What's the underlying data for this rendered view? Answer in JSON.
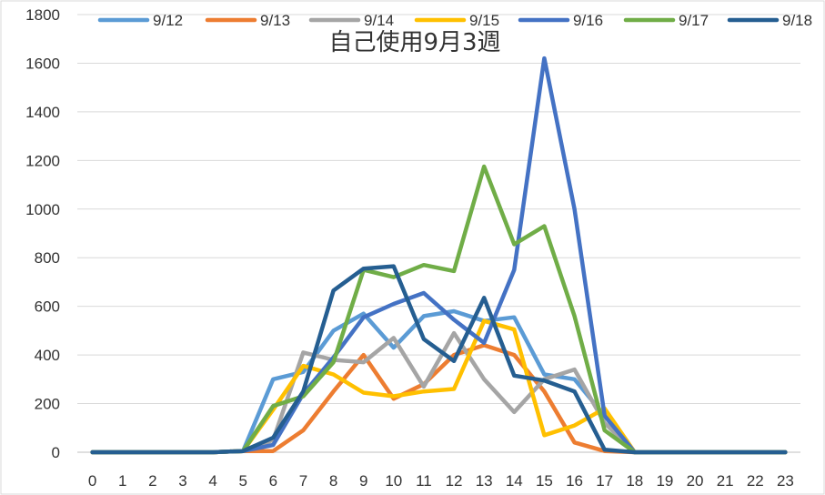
{
  "chart_data": {
    "type": "line",
    "title": "自己使用9月3週",
    "x": [
      "0",
      "1",
      "2",
      "3",
      "4",
      "5",
      "6",
      "7",
      "8",
      "9",
      "10",
      "11",
      "12",
      "13",
      "14",
      "15",
      "16",
      "17",
      "18",
      "19",
      "20",
      "21",
      "22",
      "23"
    ],
    "ylim": [
      0,
      1800
    ],
    "yticks": [
      "0",
      "200",
      "400",
      "600",
      "800",
      "1000",
      "1200",
      "1400",
      "1600",
      "1800"
    ],
    "grid": true,
    "legend": "top",
    "series": [
      {
        "name": "9/12",
        "color": "#5b9bd5",
        "values": [
          0,
          0,
          0,
          0,
          0,
          5,
          300,
          330,
          500,
          570,
          430,
          560,
          580,
          540,
          555,
          320,
          300,
          150,
          0,
          0,
          0,
          0,
          0,
          0
        ]
      },
      {
        "name": "9/13",
        "color": "#ed7d31",
        "values": [
          0,
          0,
          0,
          0,
          0,
          5,
          5,
          90,
          250,
          400,
          220,
          280,
          400,
          440,
          400,
          250,
          40,
          5,
          0,
          0,
          0,
          0,
          0,
          0
        ]
      },
      {
        "name": "9/14",
        "color": "#a5a5a5",
        "values": [
          0,
          0,
          0,
          0,
          0,
          5,
          50,
          410,
          380,
          370,
          470,
          270,
          490,
          300,
          165,
          300,
          340,
          120,
          0,
          0,
          0,
          0,
          0,
          0
        ]
      },
      {
        "name": "9/15",
        "color": "#ffc000",
        "values": [
          0,
          0,
          0,
          0,
          0,
          5,
          175,
          355,
          320,
          245,
          230,
          250,
          260,
          540,
          505,
          70,
          110,
          180,
          0,
          0,
          0,
          0,
          0,
          0
        ]
      },
      {
        "name": "9/16",
        "color": "#4472c4",
        "values": [
          0,
          0,
          0,
          0,
          0,
          5,
          30,
          240,
          390,
          555,
          610,
          655,
          545,
          450,
          750,
          1620,
          1000,
          150,
          0,
          0,
          0,
          0,
          0,
          0
        ]
      },
      {
        "name": "9/17",
        "color": "#70ad47",
        "values": [
          0,
          0,
          0,
          0,
          0,
          5,
          190,
          230,
          370,
          750,
          720,
          770,
          745,
          1175,
          855,
          930,
          560,
          90,
          0,
          0,
          0,
          0,
          0,
          0
        ]
      },
      {
        "name": "9/18",
        "color": "#255e91",
        "values": [
          0,
          0,
          0,
          0,
          0,
          5,
          60,
          250,
          665,
          755,
          765,
          465,
          375,
          635,
          315,
          295,
          250,
          10,
          0,
          0,
          0,
          0,
          0,
          0
        ]
      }
    ]
  }
}
